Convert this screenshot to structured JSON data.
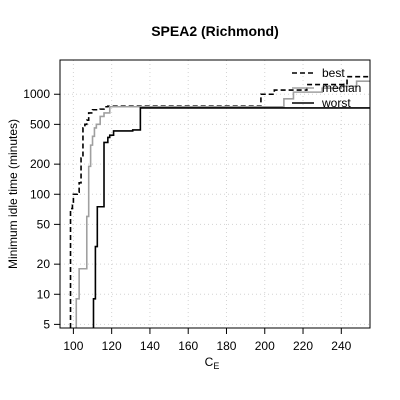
{
  "chart_data": {
    "type": "line",
    "title": "SPEA2 (Richmond)",
    "xlabel": "C",
    "xlabel_sub": "E",
    "ylabel": "Minimum idle time (minutes)",
    "xlim": [
      93,
      255
    ],
    "ylim": [
      4.6,
      2200
    ],
    "y_scale": "log",
    "x_ticks": [
      100,
      120,
      140,
      160,
      180,
      200,
      220,
      240
    ],
    "y_ticks": [
      5,
      10,
      20,
      50,
      100,
      200,
      500,
      1000
    ],
    "grid": true,
    "legend_position": "top-right",
    "series": [
      {
        "name": "best",
        "color": "#000000",
        "dash": "dashed",
        "points": [
          [
            98.5,
            4.6
          ],
          [
            98.5,
            72
          ],
          [
            99.5,
            72
          ],
          [
            99.5,
            78
          ],
          [
            100,
            78
          ],
          [
            100,
            100
          ],
          [
            102,
            100
          ],
          [
            102,
            105
          ],
          [
            103,
            105
          ],
          [
            103,
            130
          ],
          [
            104,
            130
          ],
          [
            104,
            230
          ],
          [
            105,
            230
          ],
          [
            105,
            460
          ],
          [
            106,
            460
          ],
          [
            106,
            500
          ],
          [
            107,
            500
          ],
          [
            107,
            550
          ],
          [
            108,
            550
          ],
          [
            108,
            650
          ],
          [
            110,
            650
          ],
          [
            110,
            700
          ],
          [
            114,
            700
          ],
          [
            114,
            710
          ],
          [
            116,
            710
          ],
          [
            116,
            750
          ],
          [
            118,
            750
          ],
          [
            118,
            760
          ],
          [
            198,
            760
          ],
          [
            198,
            1000
          ],
          [
            205,
            1000
          ],
          [
            205,
            1100
          ],
          [
            222,
            1100
          ],
          [
            222,
            1250
          ],
          [
            243,
            1250
          ],
          [
            243,
            1500
          ],
          [
            255,
            1500
          ]
        ]
      },
      {
        "name": "median",
        "color": "#a0a0a0",
        "dash": "solid",
        "points": [
          [
            101.5,
            4.6
          ],
          [
            101.5,
            9
          ],
          [
            103,
            9
          ],
          [
            103,
            18
          ],
          [
            107,
            18
          ],
          [
            107,
            60
          ],
          [
            108,
            60
          ],
          [
            108,
            190
          ],
          [
            109,
            190
          ],
          [
            109,
            310
          ],
          [
            110,
            310
          ],
          [
            110,
            380
          ],
          [
            111,
            380
          ],
          [
            111,
            460
          ],
          [
            112,
            460
          ],
          [
            112,
            500
          ],
          [
            114,
            500
          ],
          [
            114,
            600
          ],
          [
            116,
            600
          ],
          [
            116,
            650
          ],
          [
            119,
            650
          ],
          [
            119,
            750
          ],
          [
            210,
            750
          ],
          [
            210,
            900
          ],
          [
            215,
            900
          ],
          [
            215,
            1050
          ],
          [
            230,
            1050
          ],
          [
            230,
            1150
          ],
          [
            240,
            1150
          ],
          [
            240,
            1200
          ],
          [
            248,
            1200
          ],
          [
            248,
            1350
          ],
          [
            255,
            1350
          ]
        ]
      },
      {
        "name": "worst",
        "color": "#000000",
        "dash": "solid",
        "points": [
          [
            110.5,
            4.6
          ],
          [
            110.5,
            9
          ],
          [
            111.5,
            9
          ],
          [
            111.5,
            30
          ],
          [
            112.5,
            30
          ],
          [
            112.5,
            75
          ],
          [
            116,
            75
          ],
          [
            116,
            330
          ],
          [
            118,
            330
          ],
          [
            118,
            370
          ],
          [
            119,
            370
          ],
          [
            119,
            390
          ],
          [
            121,
            390
          ],
          [
            121,
            430
          ],
          [
            131,
            430
          ],
          [
            131,
            440
          ],
          [
            135,
            440
          ],
          [
            135,
            730
          ],
          [
            255,
            730
          ]
        ]
      }
    ]
  }
}
